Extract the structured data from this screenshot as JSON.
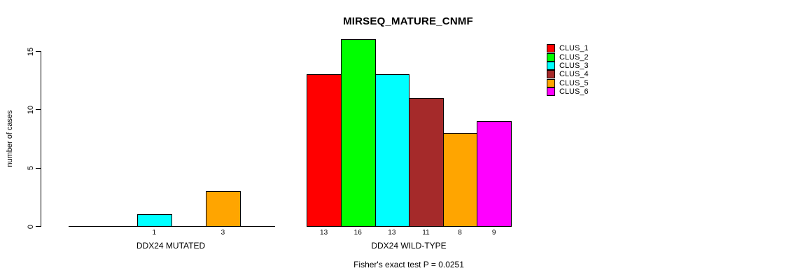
{
  "chart_data": {
    "type": "bar",
    "title": "MIRSEQ_MATURE_CNMF",
    "ylabel": "number of cases",
    "xlabel": "",
    "ylim": [
      0,
      15
    ],
    "yticks": [
      0,
      5,
      10,
      15
    ],
    "ytick_labels": [
      "0",
      "5",
      "10",
      "15"
    ],
    "grid": false,
    "legend_position": "right",
    "clusters": [
      {
        "name": "CLUS_1",
        "color": "#FF0000"
      },
      {
        "name": "CLUS_2",
        "color": "#00FF00"
      },
      {
        "name": "CLUS_3",
        "color": "#00FFFF"
      },
      {
        "name": "CLUS_4",
        "color": "#A52A2A"
      },
      {
        "name": "CLUS_5",
        "color": "#FFA500"
      },
      {
        "name": "CLUS_6",
        "color": "#FF00FF"
      }
    ],
    "groups": [
      {
        "label": "DDX24 MUTATED",
        "values": [
          0,
          0,
          1,
          0,
          3,
          0
        ],
        "bar_labels": [
          "",
          "",
          "1",
          "",
          "3",
          ""
        ]
      },
      {
        "label": "DDX24 WILD-TYPE",
        "values": [
          13,
          16,
          13,
          11,
          8,
          9
        ],
        "bar_labels": [
          "13",
          "16",
          "13",
          "11",
          "8",
          "9"
        ]
      }
    ],
    "annotation": "Fisher's exact test P = 0.0251"
  }
}
